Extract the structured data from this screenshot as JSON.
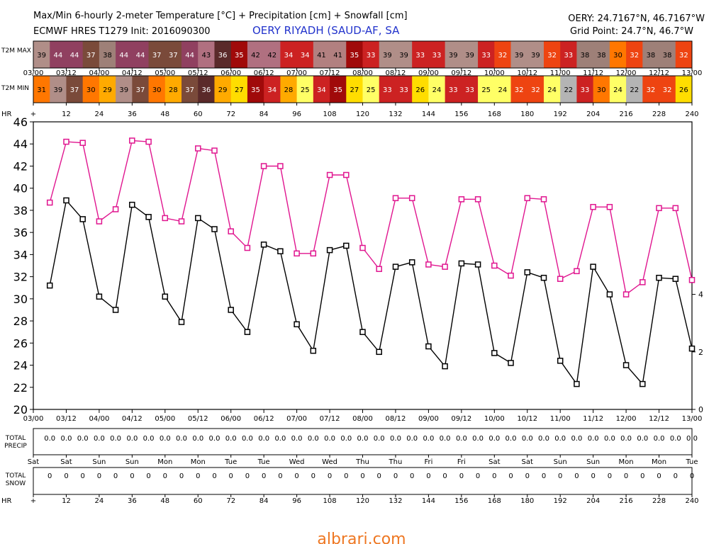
{
  "header": {
    "line1": "Max/Min 6-hourly 2-meter Temperature [°C] + Precipitation [cm] + Snowfall [cm]",
    "line2": "ECMWF HRES T1279 Init: 2016090300",
    "location": "OERY RIYADH (SAUD-AF, SA",
    "coords": "OERY: 24.7167°N, 46.7167°W",
    "grid_point": "Grid Point: 24.7°N, 46.7°W"
  },
  "watermark": "albrari.com",
  "strip_labels": {
    "max": "T2M MAX",
    "min": "T2M MIN",
    "hr": "HR",
    "precip_top": "TOTAL",
    "precip_bottom": "PRECIP",
    "snow_top": "TOTAL",
    "snow_bottom": "SNOW"
  },
  "date_ticks": [
    "03/00",
    "03/12",
    "04/00",
    "04/12",
    "05/00",
    "05/12",
    "06/00",
    "06/12",
    "07/00",
    "07/12",
    "08/00",
    "08/12",
    "09/00",
    "09/12",
    "10/00",
    "10/12",
    "11/00",
    "11/12",
    "12/00",
    "12/12",
    "13/00"
  ],
  "hour_ticks": [
    "+",
    "12",
    "24",
    "36",
    "48",
    "60",
    "72",
    "84",
    "96",
    "108",
    "120",
    "132",
    "144",
    "156",
    "168",
    "180",
    "192",
    "204",
    "216",
    "228",
    "240"
  ],
  "day_ticks": [
    "Sat",
    "Sat",
    "Sun",
    "Sun",
    "Mon",
    "Mon",
    "Tue",
    "Tue",
    "Wed",
    "Wed",
    "Thu",
    "Thu",
    "Fri",
    "Fri",
    "Sat",
    "Sat",
    "Sun",
    "Sun",
    "Mon",
    "Mon",
    "Tue"
  ],
  "max_strip": [
    39,
    44,
    44,
    37,
    38,
    44,
    44,
    37,
    37,
    44,
    43,
    36,
    35,
    42,
    42,
    34,
    34,
    41,
    41,
    35,
    33,
    39,
    39,
    33,
    33,
    39,
    39,
    33,
    32,
    39,
    39,
    32,
    33,
    38,
    38,
    30,
    32,
    38,
    38,
    32
  ],
  "min_strip": [
    31,
    39,
    37,
    30,
    29,
    39,
    37,
    30,
    28,
    37,
    36,
    29,
    27,
    35,
    34,
    28,
    25,
    34,
    35,
    27,
    25,
    33,
    33,
    26,
    24,
    33,
    33,
    25,
    24,
    32,
    32,
    24,
    22,
    33,
    30,
    24,
    22,
    32,
    32,
    26
  ],
  "precip_values": [
    "0.0",
    "0.0",
    "0.0",
    "0.0",
    "0.0",
    "0.0",
    "0.0",
    "0.0",
    "0.0",
    "0.0",
    "0.0",
    "0.0",
    "0.0",
    "0.0",
    "0.0",
    "0.0",
    "0.0",
    "0.0",
    "0.0",
    "0.0",
    "0.0",
    "0.0",
    "0.0",
    "0.0",
    "0.0",
    "0.0",
    "0.0",
    "0.0",
    "0.0",
    "0.0",
    "0.0",
    "0.0",
    "0.0",
    "0.0",
    "0.0",
    "0.0",
    "0.0",
    "0.0",
    "0.0",
    "0.0"
  ],
  "snow_values": [
    "0",
    "0",
    "0",
    "0",
    "0",
    "0",
    "0",
    "0",
    "0",
    "0",
    "0",
    "0",
    "0",
    "0",
    "0",
    "0",
    "0",
    "0",
    "0",
    "0",
    "0",
    "0",
    "0",
    "0",
    "0",
    "0",
    "0",
    "0",
    "0",
    "0",
    "0",
    "0",
    "0",
    "0",
    "0",
    "0",
    "0",
    "0",
    "0",
    "0"
  ],
  "colors": {
    "max_line": "#e0158f",
    "min_line": "#000000",
    "grid": "#000000"
  },
  "chart_data": {
    "type": "line",
    "x_unit": "forecast hour",
    "x": [
      6,
      12,
      18,
      24,
      30,
      36,
      42,
      48,
      54,
      60,
      66,
      72,
      78,
      84,
      90,
      96,
      102,
      108,
      114,
      120,
      126,
      132,
      138,
      144,
      150,
      156,
      162,
      168,
      174,
      180,
      186,
      192,
      198,
      204,
      210,
      216,
      222,
      228,
      234,
      240
    ],
    "series": [
      {
        "values": [
          38.7,
          44.2,
          44.1,
          37.0,
          38.1,
          44.3,
          44.2,
          37.3,
          37.0,
          43.6,
          43.4,
          36.1,
          34.6,
          42.0,
          42.0,
          34.1,
          34.1,
          41.2,
          41.2,
          34.6,
          32.7,
          39.1,
          39.1,
          33.1,
          32.9,
          39.0,
          39.0,
          33.0,
          32.1,
          39.1,
          39.0,
          31.8,
          32.5,
          38.3,
          38.3,
          30.4,
          31.5,
          38.2,
          38.2,
          31.7
        ]
      },
      {
        "values": [
          31.2,
          38.9,
          37.2,
          30.2,
          29.0,
          38.5,
          37.4,
          30.2,
          27.9,
          37.3,
          36.3,
          29.0,
          27.0,
          34.9,
          34.3,
          27.7,
          25.3,
          34.4,
          34.8,
          27.0,
          25.2,
          32.9,
          33.3,
          25.7,
          23.9,
          33.2,
          33.1,
          25.1,
          24.2,
          32.4,
          31.9,
          24.4,
          22.3,
          32.9,
          30.4,
          24.0,
          22.3,
          31.9,
          31.8,
          25.5
        ]
      }
    ],
    "xlim": [
      0,
      240
    ],
    "ylim": [
      20,
      46
    ],
    "y_ticks": [
      20,
      22,
      24,
      26,
      28,
      30,
      32,
      34,
      36,
      38,
      40,
      42,
      44,
      46
    ],
    "y2_ticks": [
      0,
      2,
      4
    ],
    "y2lim": [
      0,
      10
    ]
  }
}
